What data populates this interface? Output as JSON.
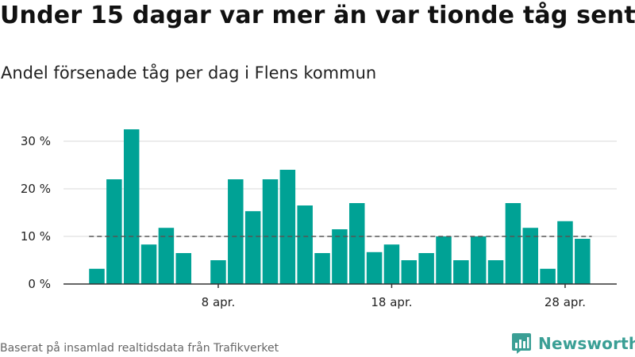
{
  "title": "Under 15 dagar var mer än var tionde tåg sent",
  "subtitle": "Andel försenade tåg per dag i Flens kommun",
  "footer": "Baserat på insamlad realtidsdata från Trafikverket",
  "brand": {
    "name": "Newsworthy",
    "icon": "bar-chart-logo-icon",
    "color": "#3a9f95"
  },
  "colors": {
    "bar": "#00a295",
    "grid": "#d9d9d9",
    "axis": "#333333",
    "reference": "#555555"
  },
  "chart_data": {
    "type": "bar",
    "title": "Andel försenade tåg per dag i Flens kommun",
    "xlabel": "",
    "ylabel": "",
    "x_axis": {
      "start_day": 1,
      "end_day": 30,
      "month": "apr."
    },
    "categories": [
      "1 apr.",
      "2 apr.",
      "3 apr.",
      "4 apr.",
      "5 apr.",
      "6 apr.",
      "7 apr.",
      "8 apr.",
      "9 apr.",
      "10 apr.",
      "11 apr.",
      "12 apr.",
      "13 apr.",
      "14 apr.",
      "15 apr.",
      "16 apr.",
      "17 apr.",
      "18 apr.",
      "19 apr.",
      "20 apr.",
      "21 apr.",
      "22 apr.",
      "23 apr.",
      "24 apr.",
      "25 apr.",
      "26 apr.",
      "27 apr.",
      "28 apr.",
      "29 apr.",
      "30 apr."
    ],
    "values": [
      3.2,
      22.0,
      32.5,
      8.3,
      11.8,
      6.5,
      null,
      5.0,
      22.0,
      15.3,
      22.0,
      24.0,
      16.5,
      6.5,
      11.5,
      17.0,
      6.7,
      8.3,
      5.0,
      6.5,
      10.0,
      5.0,
      10.0,
      5.0,
      17.0,
      11.8,
      3.2,
      13.2,
      9.5,
      null
    ],
    "ylim": [
      0,
      35
    ],
    "yticks": [
      {
        "value": 0,
        "label": "0 %"
      },
      {
        "value": 10,
        "label": "10 %"
      },
      {
        "value": 20,
        "label": "20 %"
      },
      {
        "value": 30,
        "label": "30 %"
      }
    ],
    "xticks": [
      {
        "day": 8,
        "label": "8 apr."
      },
      {
        "day": 18,
        "label": "18 apr."
      },
      {
        "day": 28,
        "label": "28 apr."
      }
    ],
    "reference_line": {
      "value": 10,
      "style": "dashed"
    },
    "grid": true
  }
}
